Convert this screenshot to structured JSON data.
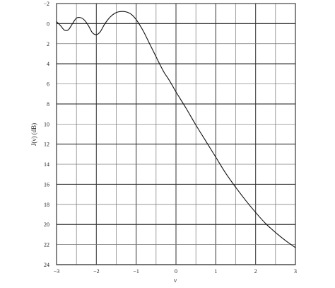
{
  "chart_data": {
    "type": "line",
    "xlabel": "ν",
    "ylabel": "J(ν) (dB)",
    "xlim": [
      -3,
      3
    ],
    "ylim": [
      -2,
      24
    ],
    "y_inverted": true,
    "grid": true,
    "x_ticks": [
      "−3",
      "−2",
      "−1",
      "0",
      "1",
      "2",
      "3"
    ],
    "x_tick_values": [
      -3,
      -2,
      -1,
      0,
      1,
      2,
      3
    ],
    "y_ticks": [
      "−2",
      "0",
      "2",
      "4",
      "6",
      "8",
      "10",
      "12",
      "14",
      "16",
      "18",
      "20",
      "22",
      "24"
    ],
    "y_tick_values": [
      -2,
      0,
      2,
      4,
      6,
      8,
      10,
      12,
      14,
      16,
      18,
      20,
      22,
      24
    ],
    "x_minor_step": 0.5,
    "series": [
      {
        "x": [
          -3.0,
          -2.9,
          -2.8,
          -2.7,
          -2.6,
          -2.5,
          -2.4,
          -2.3,
          -2.2,
          -2.1,
          -2.0,
          -1.9,
          -1.8,
          -1.7,
          -1.6,
          -1.5,
          -1.4,
          -1.3,
          -1.2,
          -1.1,
          -1.0,
          -0.9,
          -0.8,
          -0.7,
          -0.6,
          -0.5,
          -0.4,
          -0.3,
          -0.2,
          -0.1,
          0.0,
          0.25,
          0.5,
          0.75,
          1.0,
          1.25,
          1.5,
          1.75,
          2.0,
          2.25,
          2.5,
          2.75,
          3.0
        ],
        "y": [
          -0.2,
          0.2,
          0.65,
          0.6,
          0.0,
          -0.55,
          -0.6,
          -0.35,
          0.2,
          0.9,
          1.1,
          0.8,
          0.1,
          -0.45,
          -0.85,
          -1.1,
          -1.2,
          -1.2,
          -1.1,
          -0.85,
          -0.4,
          0.2,
          0.9,
          1.7,
          2.5,
          3.3,
          4.1,
          4.85,
          5.45,
          6.1,
          6.8,
          8.4,
          10.1,
          11.7,
          13.3,
          14.9,
          16.3,
          17.6,
          18.8,
          19.9,
          20.8,
          21.6,
          22.3
        ]
      }
    ]
  }
}
